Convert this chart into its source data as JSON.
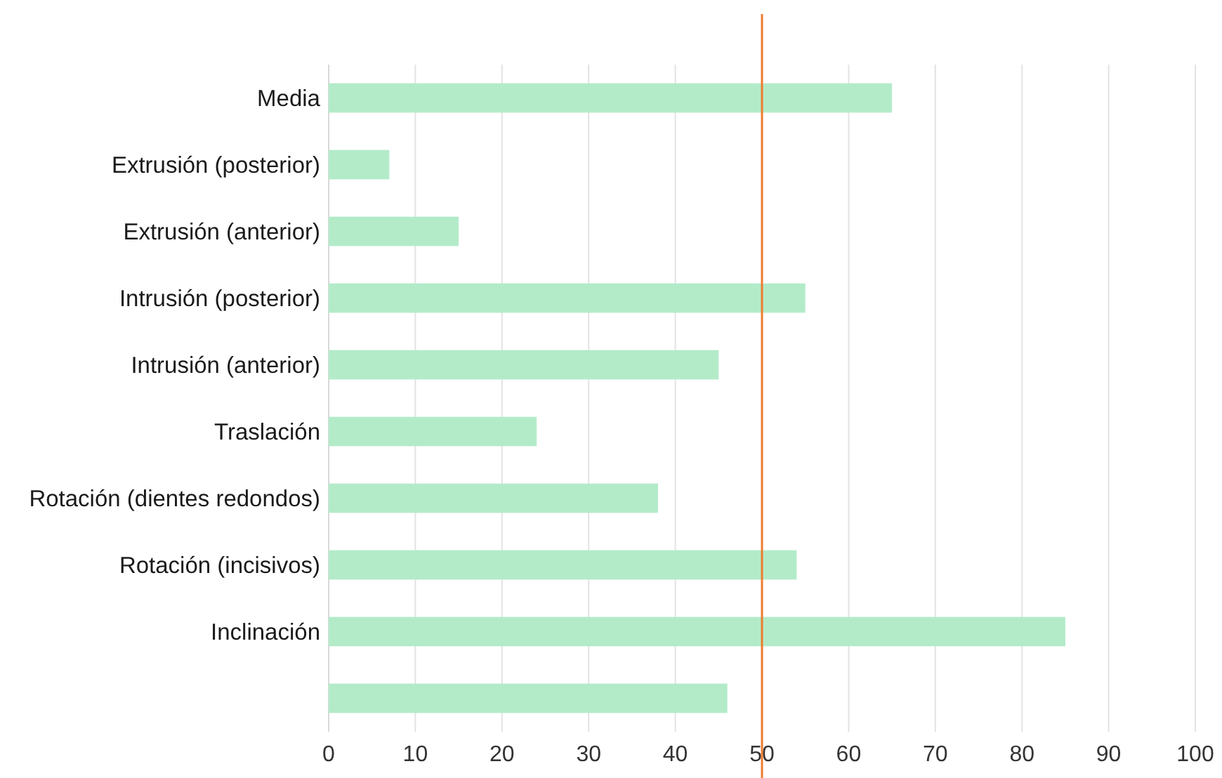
{
  "chart_data": {
    "type": "bar",
    "orientation": "horizontal",
    "categories": [
      "Media",
      "Extrusión (posterior)",
      "Extrusión (anterior)",
      "Intrusión (posterior)",
      "Intrusión (anterior)",
      "Traslación",
      "Rotación (dientes redondos)",
      "Rotación (incisivos)",
      "Inclinación",
      null
    ],
    "values": [
      65,
      7,
      15,
      55,
      45,
      24,
      38,
      54,
      85,
      46
    ],
    "color": "#b3ebc9",
    "xlim": [
      0,
      100
    ],
    "xticks": [
      0,
      10,
      20,
      30,
      40,
      50,
      60,
      70,
      80,
      90,
      100
    ],
    "grid": "x",
    "ref_lines": [
      {
        "axis": "x",
        "value": 50,
        "color": "#ed7d31"
      }
    ]
  }
}
